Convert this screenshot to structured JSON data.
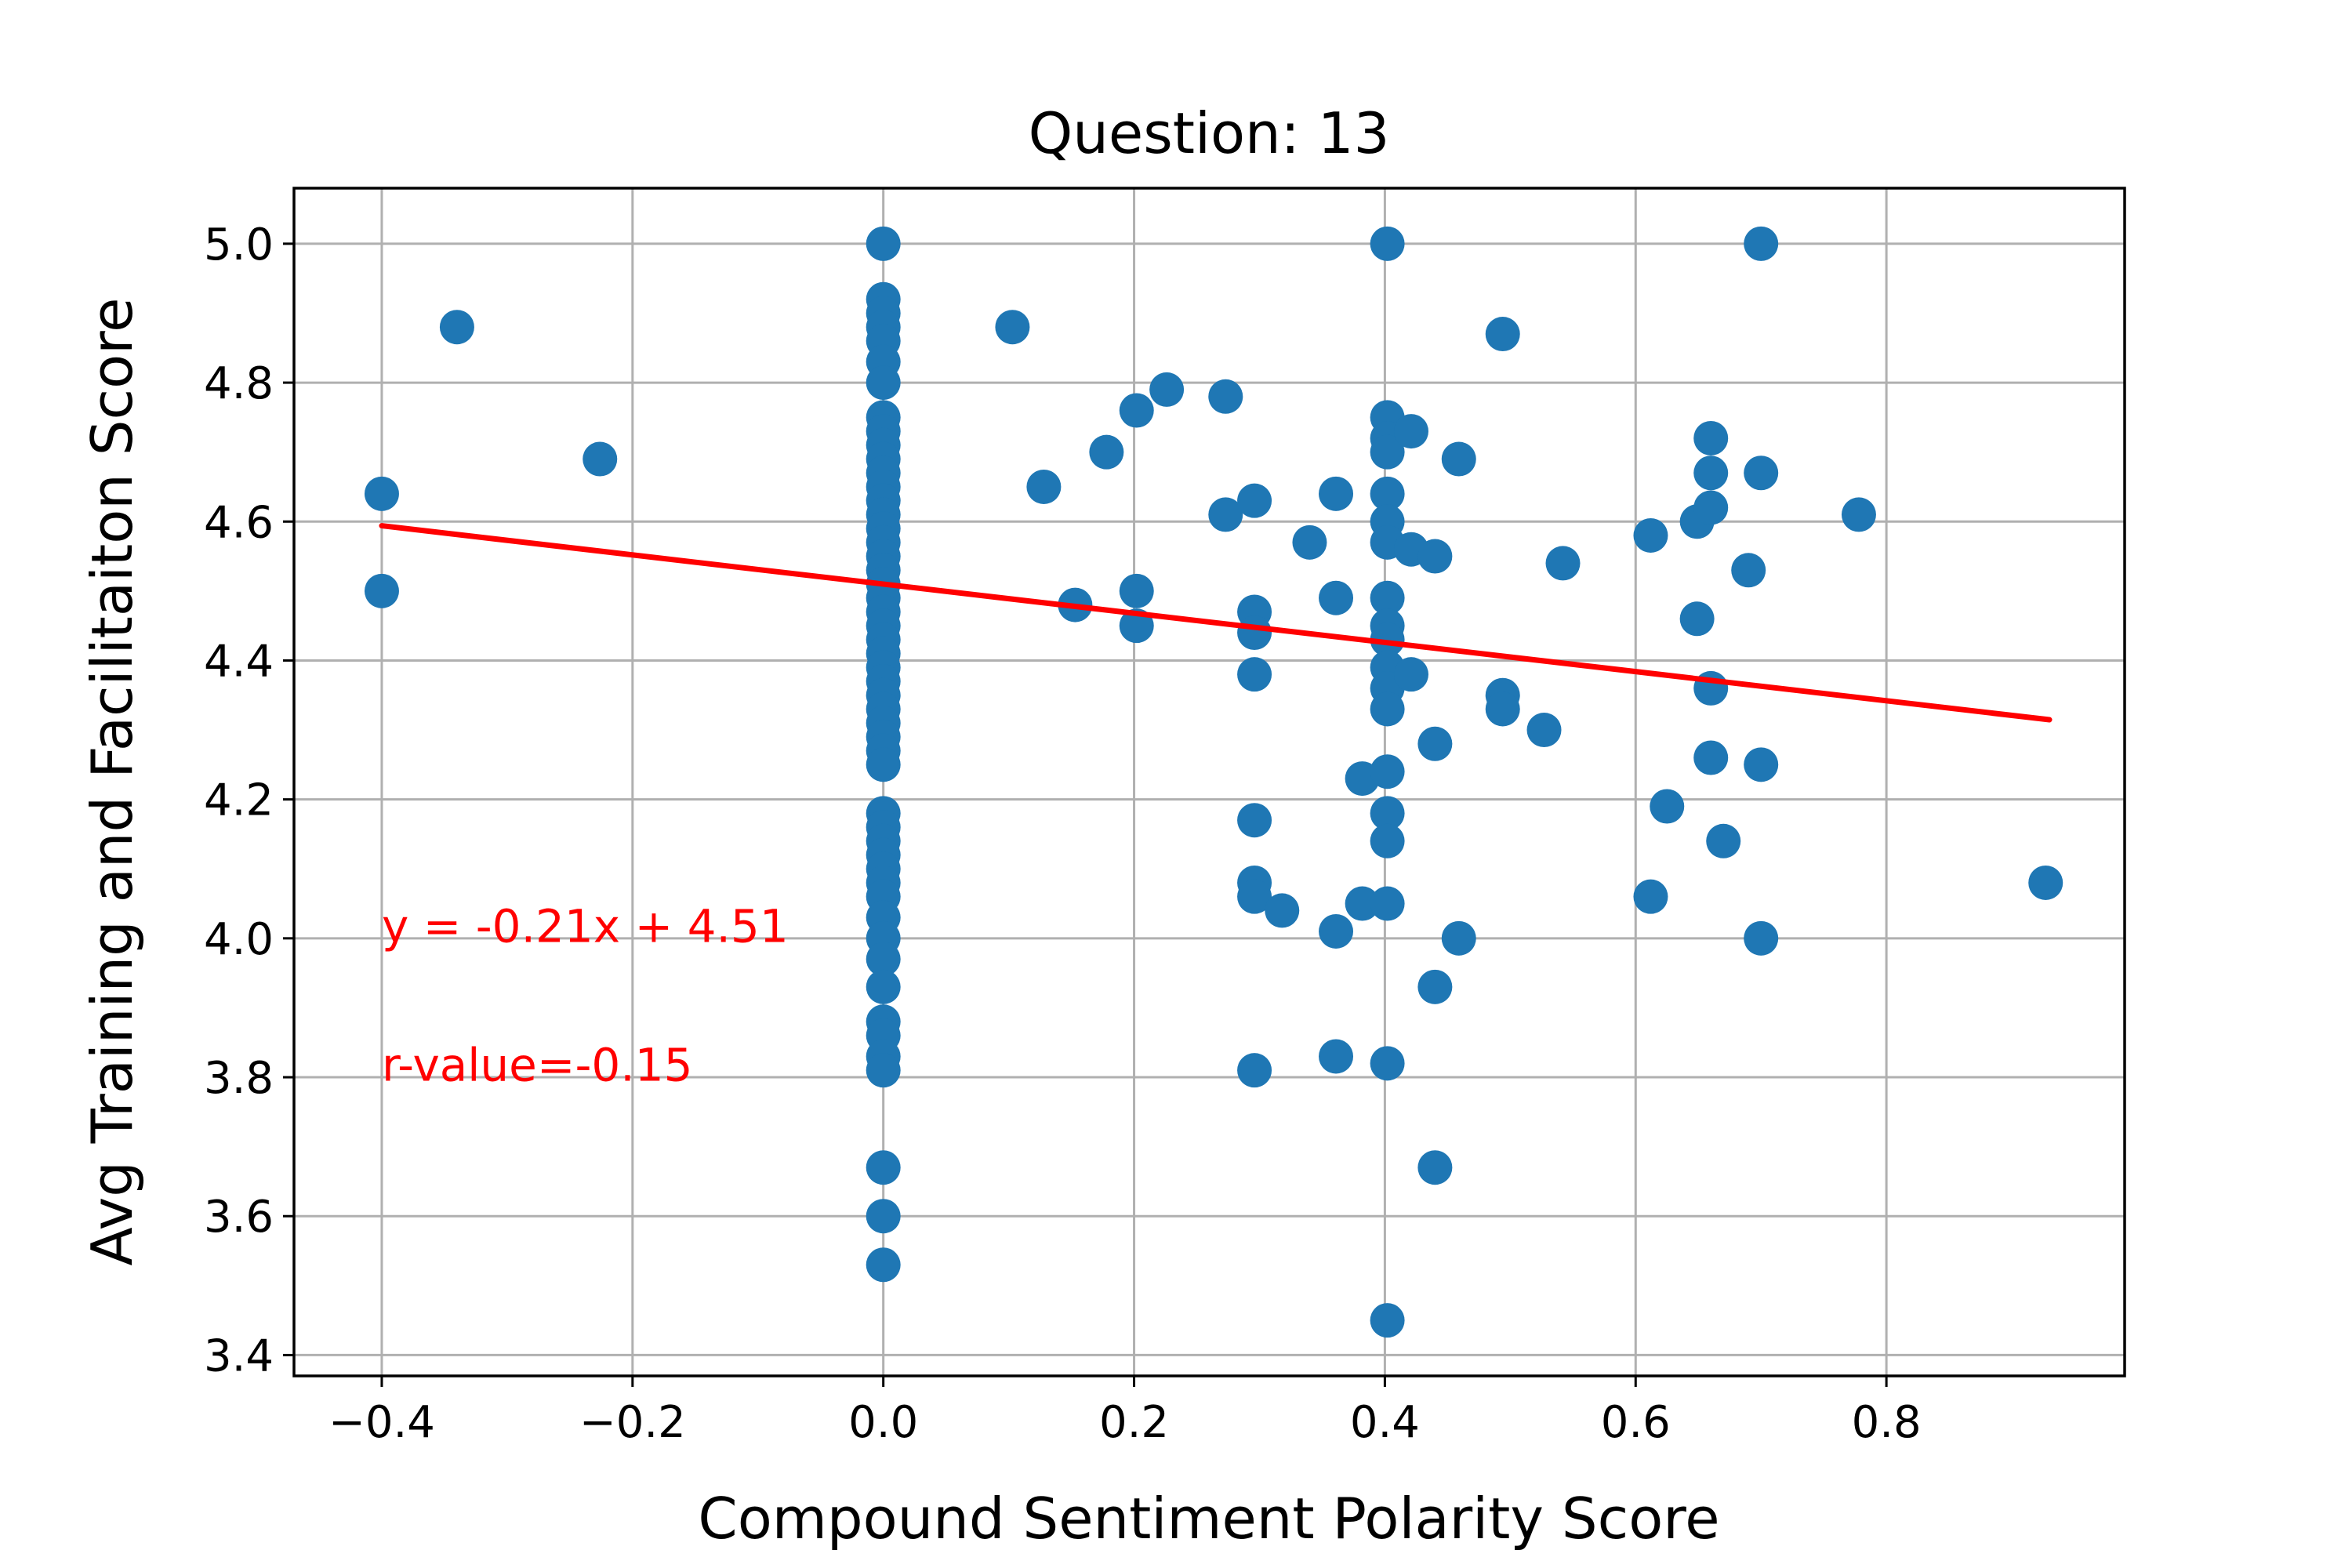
{
  "chart_data": {
    "type": "scatter",
    "title": "Question: 13",
    "xlabel": "Compound Sentiment Polarity Score",
    "ylabel": "Avg Training and Facilitaiton Score",
    "xlim": [
      -0.47,
      0.99
    ],
    "ylim": [
      3.37,
      5.08
    ],
    "xticks": [
      -0.4,
      -0.2,
      0.0,
      0.2,
      0.4,
      0.6,
      0.8
    ],
    "xtick_labels": [
      "−0.4",
      "−0.2",
      "0.0",
      "0.2",
      "0.4",
      "0.6",
      "0.8"
    ],
    "yticks": [
      3.4,
      3.6,
      3.8,
      4.0,
      4.2,
      4.4,
      4.6,
      4.8,
      5.0
    ],
    "ytick_labels": [
      "3.4",
      "3.6",
      "3.8",
      "4.0",
      "4.2",
      "4.4",
      "4.6",
      "4.8",
      "5.0"
    ],
    "grid": true,
    "point_color": "#1f77b4",
    "line_color": "#ff0000",
    "regression": {
      "slope": -0.21,
      "intercept": 4.51,
      "x_range": [
        -0.4,
        0.93
      ]
    },
    "annotations": [
      {
        "text": "y = -0.21x + 4.51",
        "x": -0.4,
        "y": 3.995,
        "color": "#ff0000"
      },
      {
        "text": "r-value=-0.15",
        "x": -0.4,
        "y": 3.795,
        "color": "#ff0000"
      }
    ],
    "points": [
      [
        -0.4,
        4.64
      ],
      [
        -0.4,
        4.5
      ],
      [
        -0.34,
        4.88
      ],
      [
        -0.226,
        4.69
      ],
      [
        0.0,
        5.0
      ],
      [
        0.0,
        4.92
      ],
      [
        0.0,
        4.9
      ],
      [
        0.0,
        4.88
      ],
      [
        0.0,
        4.86
      ],
      [
        0.0,
        4.83
      ],
      [
        0.0,
        4.8
      ],
      [
        0.0,
        4.75
      ],
      [
        0.0,
        4.73
      ],
      [
        0.0,
        4.71
      ],
      [
        0.0,
        4.69
      ],
      [
        0.0,
        4.67
      ],
      [
        0.0,
        4.65
      ],
      [
        0.0,
        4.63
      ],
      [
        0.0,
        4.61
      ],
      [
        0.0,
        4.59
      ],
      [
        0.0,
        4.57
      ],
      [
        0.0,
        4.55
      ],
      [
        0.0,
        4.53
      ],
      [
        0.0,
        4.51
      ],
      [
        0.0,
        4.49
      ],
      [
        0.0,
        4.47
      ],
      [
        0.0,
        4.45
      ],
      [
        0.0,
        4.43
      ],
      [
        0.0,
        4.41
      ],
      [
        0.0,
        4.39
      ],
      [
        0.0,
        4.37
      ],
      [
        0.0,
        4.35
      ],
      [
        0.0,
        4.33
      ],
      [
        0.0,
        4.31
      ],
      [
        0.0,
        4.29
      ],
      [
        0.0,
        4.27
      ],
      [
        0.0,
        4.25
      ],
      [
        0.0,
        4.18
      ],
      [
        0.0,
        4.16
      ],
      [
        0.0,
        4.14
      ],
      [
        0.0,
        4.12
      ],
      [
        0.0,
        4.1
      ],
      [
        0.0,
        4.08
      ],
      [
        0.0,
        4.06
      ],
      [
        0.0,
        4.03
      ],
      [
        0.0,
        4.0
      ],
      [
        0.0,
        3.97
      ],
      [
        0.0,
        3.93
      ],
      [
        0.0,
        3.88
      ],
      [
        0.0,
        3.86
      ],
      [
        0.0,
        3.83
      ],
      [
        0.0,
        3.81
      ],
      [
        0.0,
        3.67
      ],
      [
        0.0,
        3.6
      ],
      [
        0.0,
        3.53
      ],
      [
        0.103,
        4.88
      ],
      [
        0.128,
        4.65
      ],
      [
        0.153,
        4.48
      ],
      [
        0.178,
        4.7
      ],
      [
        0.202,
        4.76
      ],
      [
        0.202,
        4.5
      ],
      [
        0.202,
        4.45
      ],
      [
        0.226,
        4.79
      ],
      [
        0.273,
        4.78
      ],
      [
        0.273,
        4.61
      ],
      [
        0.296,
        4.63
      ],
      [
        0.296,
        4.47
      ],
      [
        0.296,
        4.44
      ],
      [
        0.296,
        4.38
      ],
      [
        0.296,
        4.17
      ],
      [
        0.296,
        4.08
      ],
      [
        0.296,
        4.06
      ],
      [
        0.296,
        3.81
      ],
      [
        0.318,
        4.04
      ],
      [
        0.34,
        4.57
      ],
      [
        0.361,
        4.64
      ],
      [
        0.361,
        4.49
      ],
      [
        0.361,
        4.01
      ],
      [
        0.361,
        3.83
      ],
      [
        0.382,
        4.23
      ],
      [
        0.382,
        4.05
      ],
      [
        0.402,
        5.0
      ],
      [
        0.402,
        4.75
      ],
      [
        0.402,
        4.72
      ],
      [
        0.402,
        4.7
      ],
      [
        0.402,
        4.64
      ],
      [
        0.402,
        4.6
      ],
      [
        0.402,
        4.57
      ],
      [
        0.402,
        4.49
      ],
      [
        0.402,
        4.45
      ],
      [
        0.402,
        4.43
      ],
      [
        0.402,
        4.39
      ],
      [
        0.402,
        4.36
      ],
      [
        0.402,
        4.33
      ],
      [
        0.402,
        4.24
      ],
      [
        0.402,
        4.18
      ],
      [
        0.402,
        4.14
      ],
      [
        0.402,
        4.05
      ],
      [
        0.402,
        3.82
      ],
      [
        0.402,
        3.45
      ],
      [
        0.421,
        4.73
      ],
      [
        0.421,
        4.56
      ],
      [
        0.421,
        4.38
      ],
      [
        0.44,
        4.55
      ],
      [
        0.44,
        4.28
      ],
      [
        0.44,
        3.93
      ],
      [
        0.44,
        3.67
      ],
      [
        0.459,
        4.69
      ],
      [
        0.459,
        4.0
      ],
      [
        0.494,
        4.87
      ],
      [
        0.494,
        4.35
      ],
      [
        0.494,
        4.33
      ],
      [
        0.527,
        4.3
      ],
      [
        0.542,
        4.54
      ],
      [
        0.612,
        4.58
      ],
      [
        0.612,
        4.06
      ],
      [
        0.625,
        4.19
      ],
      [
        0.649,
        4.6
      ],
      [
        0.649,
        4.46
      ],
      [
        0.66,
        4.72
      ],
      [
        0.66,
        4.67
      ],
      [
        0.66,
        4.62
      ],
      [
        0.66,
        4.36
      ],
      [
        0.66,
        4.26
      ],
      [
        0.67,
        4.14
      ],
      [
        0.69,
        4.53
      ],
      [
        0.7,
        5.0
      ],
      [
        0.7,
        4.67
      ],
      [
        0.7,
        4.25
      ],
      [
        0.7,
        4.0
      ],
      [
        0.778,
        4.61
      ],
      [
        0.927,
        4.08
      ]
    ]
  }
}
